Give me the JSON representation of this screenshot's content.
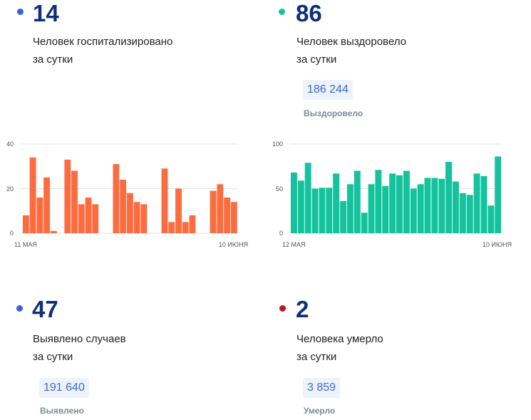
{
  "colors": {
    "hosp": "#ff6b3d",
    "recovered": "#12c49c",
    "grid": "#e3e3e3",
    "dot_hosp": "#3a62d6",
    "dot_rec": "#13c4a0",
    "dot_cases": "#3a62d6",
    "dot_dead": "#c0141c"
  },
  "hospitalized": {
    "number": "14",
    "label_line1": "Человек госпитализировано",
    "label_line2": "за сутки"
  },
  "recovered": {
    "number": "86",
    "label_line1": "Человек выздоровело",
    "label_line2": "за сутки",
    "total": "186 244",
    "total_label": "Выздоровело"
  },
  "cases": {
    "number": "47",
    "label_line1": "Выявлено случаев",
    "label_line2": "за сутки",
    "total": "191 640",
    "total_label": "Выявлено"
  },
  "deaths": {
    "number": "2",
    "label_line1": "Человека умерло",
    "label_line2": "за сутки",
    "total": "3 859",
    "total_label": "Умерло"
  },
  "chart_data": [
    {
      "type": "bar",
      "series_color": "#ff6b3d",
      "y_ticks": [
        "0",
        "20",
        "40"
      ],
      "ylim": [
        0,
        40
      ],
      "x_start_label": "11 МАЯ",
      "x_end_label": "10 ИЮНЯ",
      "values": [
        8,
        34,
        16,
        25,
        1,
        null,
        33,
        28,
        13,
        16,
        13,
        null,
        null,
        31,
        24,
        18,
        14,
        13,
        null,
        null,
        29,
        5,
        20,
        5,
        8,
        null,
        null,
        19,
        22,
        16,
        14
      ]
    },
    {
      "type": "bar",
      "series_color": "#12c49c",
      "y_ticks": [
        "0",
        "50",
        "100"
      ],
      "ylim": [
        0,
        100
      ],
      "x_start_label": "12 МАЯ",
      "x_end_label": "10 ИЮНЯ",
      "values": [
        68,
        59,
        79,
        50,
        51,
        51,
        67,
        36,
        55,
        70,
        23,
        55,
        71,
        53,
        67,
        65,
        70,
        50,
        55,
        62,
        62,
        61,
        80,
        58,
        45,
        43,
        67,
        64,
        31,
        86
      ]
    }
  ]
}
